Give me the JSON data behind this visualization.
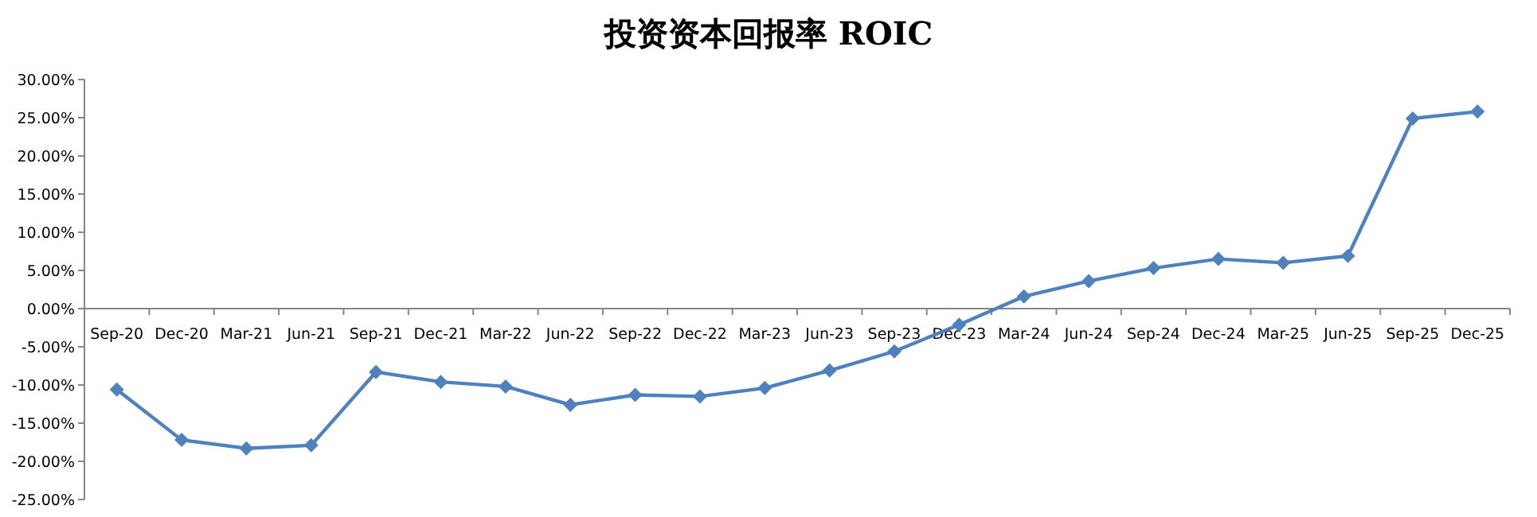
{
  "chart_data": {
    "type": "line",
    "title": "投资资本回报率 ROIC",
    "categories": [
      "Sep-20",
      "Dec-20",
      "Mar-21",
      "Jun-21",
      "Sep-21",
      "Dec-21",
      "Mar-22",
      "Jun-22",
      "Sep-22",
      "Dec-22",
      "Mar-23",
      "Jun-23",
      "Sep-23",
      "Dec-23",
      "Mar-24",
      "Jun-24",
      "Sep-24",
      "Dec-24",
      "Mar-25",
      "Jun-25",
      "Sep-25",
      "Dec-25"
    ],
    "series": [
      {
        "color": "#4f81bd",
        "values": [
          -10.6,
          -17.2,
          -18.3,
          -17.9,
          -8.3,
          -9.6,
          -10.2,
          -12.6,
          -11.3,
          -11.5,
          -10.4,
          -8.1,
          -5.6,
          -2.1,
          1.6,
          3.6,
          5.3,
          6.5,
          6.0,
          6.9,
          24.9,
          25.8
        ]
      }
    ],
    "ylim": [
      -25,
      30
    ],
    "yticks": [
      {
        "value": -25,
        "label": "-25.00%"
      },
      {
        "value": -20,
        "label": "-20.00%"
      },
      {
        "value": -15,
        "label": "-15.00%"
      },
      {
        "value": -10,
        "label": "-10.00%"
      },
      {
        "value": -5,
        "label": "-5.00%"
      },
      {
        "value": 0,
        "label": "0.00%"
      },
      {
        "value": 5,
        "label": "5.00%"
      },
      {
        "value": 10,
        "label": "10.00%"
      },
      {
        "value": 15,
        "label": "15.00%"
      },
      {
        "value": 20,
        "label": "20.00%"
      },
      {
        "value": 25,
        "label": "25.00%"
      },
      {
        "value": 30,
        "label": "30.00%"
      }
    ],
    "marker": "diamond",
    "line_style": "solid"
  }
}
